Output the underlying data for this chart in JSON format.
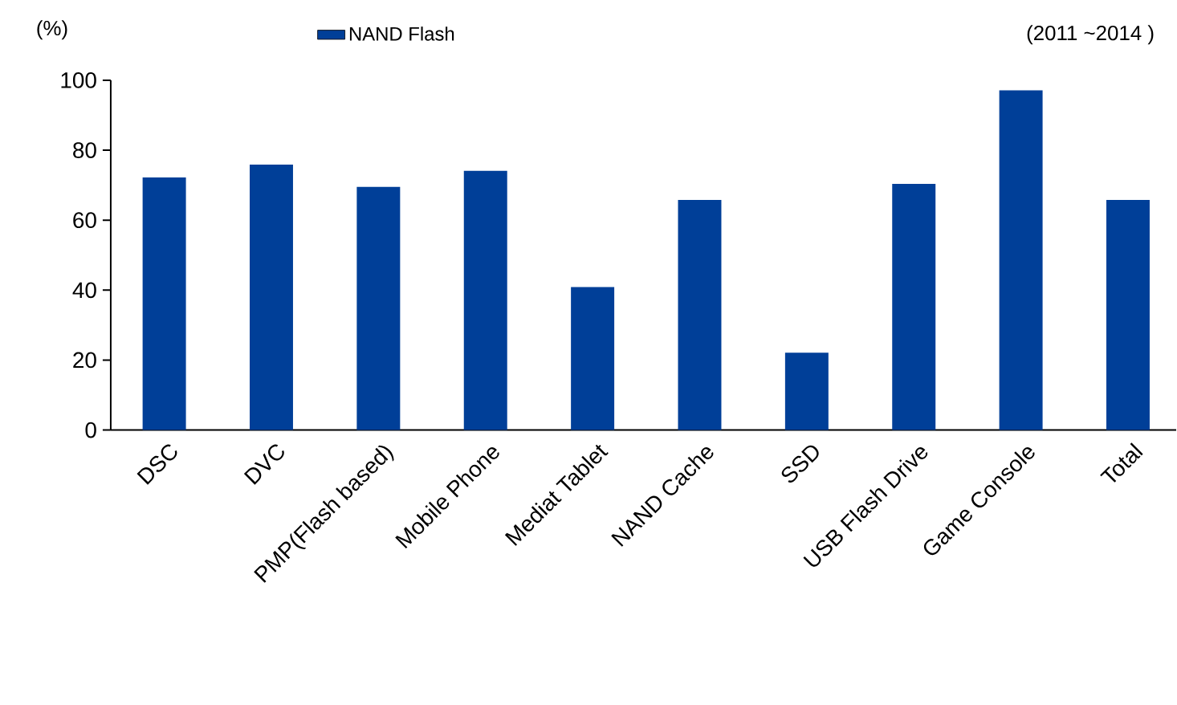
{
  "chart_data": {
    "type": "bar",
    "ylabel": "(%)",
    "annotations": [
      "(2011   ~2014   )"
    ],
    "categories": [
      "DSC",
      "DVC",
      "PMP(Flash based)",
      "Mobile Phone",
      "Mediat Tablet",
      "NAND Cache",
      "SSD",
      "USB Flash Drive",
      "Game Console",
      "Total"
    ],
    "series": [
      {
        "name": "NAND Flash",
        "color": "#003f98",
        "values": [
          72.2,
          75.9,
          69.5,
          74.1,
          40.9,
          65.8,
          22.1,
          70.4,
          97.1,
          65.8
        ]
      }
    ],
    "ylim": [
      0,
      100
    ],
    "yticks": [
      0,
      20,
      40,
      60,
      80,
      100
    ],
    "legend": "top"
  }
}
